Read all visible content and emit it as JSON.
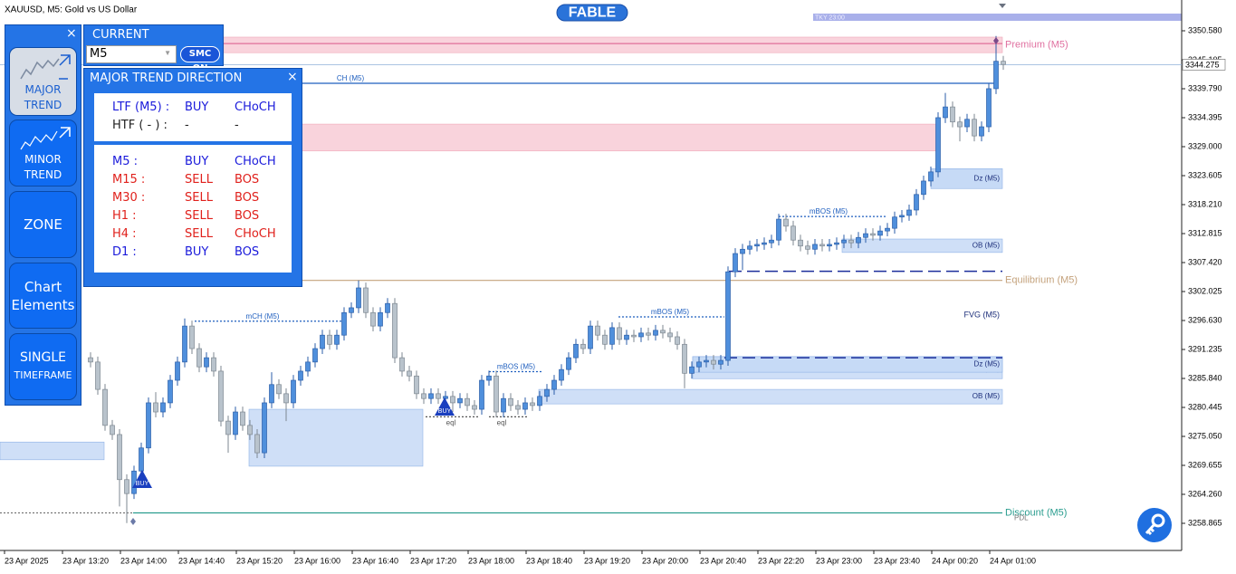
{
  "chart_data": {
    "type": "candlestick",
    "title": "XAUUSD, M5:  Gold vs US Dollar",
    "logo": "FABLE",
    "session": "TKY 23:00",
    "x_tick_labels": [
      "23 Apr 2025",
      "23 Apr 13:20",
      "23 Apr 14:00",
      "23 Apr 14:40",
      "23 Apr 15:20",
      "23 Apr 16:00",
      "23 Apr 16:40",
      "23 Apr 17:20",
      "23 Apr 18:00",
      "23 Apr 18:40",
      "23 Apr 19:20",
      "23 Apr 20:00",
      "23 Apr 20:40",
      "23 Apr 22:20",
      "23 Apr 23:00",
      "23 Apr 23:40",
      "24 Apr 00:20",
      "24 Apr 01:00"
    ],
    "up_color": "#4f8fdc",
    "down_color": "#b9c3cc",
    "open": [
      3289.7,
      3288.9,
      3283.8,
      3277.1,
      3275.4,
      3267.0,
      3264.4,
      3268.6,
      3272.9,
      3281.3,
      3279.6,
      3281.3,
      3285.5,
      3288.9,
      3295.6,
      3291.4,
      3288.0,
      3289.7,
      3287.2,
      3277.9,
      3275.4,
      3279.6,
      3277.1,
      3275.4,
      3272.0,
      3281.3,
      3284.7,
      3283.0,
      3281.3,
      3285.5,
      3287.2,
      3288.9,
      3291.4,
      3293.9,
      3292.2,
      3293.9,
      3298.1,
      3299.0,
      3302.7,
      3298.1,
      3295.6,
      3298.1,
      3299.8,
      3289.7,
      3287.2,
      3286.3,
      3283.0,
      3282.1,
      3283.0,
      3282.1,
      3282.5,
      3281.3,
      3282.1,
      3280.8,
      3280.1,
      3285.5,
      3286.3,
      3279.6,
      3282.1,
      3280.8,
      3280.1,
      3281.3,
      3280.8,
      3282.5,
      3283.8,
      3285.5,
      3287.5,
      3289.7,
      3292.2,
      3291.4,
      3295.6,
      3293.9,
      3292.2,
      3295.3,
      3293.1,
      3293.9,
      3293.6,
      3294.3,
      3293.9,
      3294.8,
      3294.3,
      3293.6,
      3292.2,
      3286.8,
      3288.0,
      3288.9,
      3289.2,
      3288.5,
      3289.2,
      3305.7,
      3309.1,
      3309.9,
      3310.5,
      3310.8,
      3311.1,
      3311.6,
      3315.5,
      3314.2,
      3311.6,
      3310.5,
      3309.9,
      3310.8,
      3310.5,
      3310.8,
      3311.1,
      3311.6,
      3311.1,
      3312.1,
      3312.8,
      3312.5,
      3313.3,
      3313.8,
      3315.9,
      3316.2,
      3317.2,
      3320.1,
      3322.6,
      3324.3,
      3334.4,
      3336.4,
      3333.6,
      3332.7,
      3334.1,
      3331.0,
      3332.7,
      3339.8,
      3344.9
    ],
    "high": [
      3290.7,
      3289.9,
      3284.8,
      3278.1,
      3276.4,
      3268.0,
      3269.6,
      3273.9,
      3282.3,
      3283.3,
      3282.3,
      3286.5,
      3289.9,
      3297.0,
      3296.6,
      3292.4,
      3290.7,
      3290.7,
      3288.2,
      3278.9,
      3280.6,
      3280.6,
      3278.1,
      3276.4,
      3282.3,
      3287.0,
      3285.7,
      3284.0,
      3286.5,
      3288.2,
      3289.9,
      3292.4,
      3294.9,
      3294.9,
      3294.9,
      3299.1,
      3300.0,
      3304.1,
      3303.7,
      3299.1,
      3299.1,
      3300.8,
      3300.8,
      3290.7,
      3288.2,
      3287.3,
      3284.0,
      3284.0,
      3284.0,
      3283.5,
      3283.5,
      3283.1,
      3283.1,
      3281.8,
      3286.5,
      3287.3,
      3287.3,
      3283.1,
      3283.1,
      3281.8,
      3282.3,
      3282.3,
      3283.5,
      3284.8,
      3286.5,
      3288.5,
      3290.7,
      3293.2,
      3293.2,
      3296.6,
      3296.6,
      3294.9,
      3296.3,
      3296.3,
      3294.9,
      3294.9,
      3295.3,
      3295.3,
      3295.8,
      3295.8,
      3295.3,
      3294.6,
      3293.2,
      3289.0,
      3289.9,
      3290.2,
      3290.2,
      3290.2,
      3306.7,
      3310.1,
      3310.9,
      3311.5,
      3311.8,
      3312.1,
      3312.6,
      3316.5,
      3316.5,
      3315.2,
      3312.6,
      3311.5,
      3311.8,
      3311.8,
      3311.8,
      3312.1,
      3312.6,
      3312.6,
      3313.1,
      3313.8,
      3313.8,
      3314.3,
      3314.8,
      3316.9,
      3317.2,
      3318.2,
      3321.1,
      3323.6,
      3325.3,
      3335.4,
      3339.0,
      3337.4,
      3334.6,
      3335.1,
      3335.1,
      3333.7,
      3340.8,
      3349.6,
      3345.9
    ],
    "low": [
      3287.9,
      3282.8,
      3276.1,
      3274.4,
      3262.0,
      3258.9,
      3263.4,
      3267.6,
      3271.9,
      3278.6,
      3278.6,
      3280.3,
      3284.5,
      3287.9,
      3290.4,
      3287.0,
      3287.0,
      3286.2,
      3276.9,
      3272.0,
      3274.4,
      3276.1,
      3274.4,
      3271.0,
      3271.0,
      3280.3,
      3282.0,
      3277.9,
      3280.3,
      3284.5,
      3286.2,
      3287.9,
      3290.4,
      3291.2,
      3291.2,
      3292.9,
      3297.1,
      3298.0,
      3297.1,
      3294.6,
      3294.6,
      3297.1,
      3288.7,
      3286.2,
      3285.3,
      3282.0,
      3281.1,
      3281.1,
      3281.1,
      3280.8,
      3279.6,
      3280.3,
      3279.8,
      3279.1,
      3279.1,
      3284.5,
      3278.6,
      3278.6,
      3279.8,
      3279.1,
      3279.1,
      3279.8,
      3279.8,
      3281.5,
      3282.8,
      3284.5,
      3286.5,
      3288.7,
      3290.4,
      3290.4,
      3292.9,
      3291.2,
      3291.2,
      3292.1,
      3292.1,
      3292.6,
      3292.6,
      3292.9,
      3292.9,
      3293.3,
      3292.6,
      3291.2,
      3284.0,
      3285.8,
      3287.0,
      3287.9,
      3287.5,
      3287.5,
      3288.2,
      3304.7,
      3306.0,
      3308.9,
      3309.5,
      3309.8,
      3310.1,
      3310.6,
      3313.2,
      3310.6,
      3309.5,
      3308.9,
      3308.9,
      3309.5,
      3309.5,
      3309.8,
      3310.1,
      3310.1,
      3310.1,
      3311.1,
      3311.5,
      3311.5,
      3312.3,
      3312.8,
      3314.9,
      3315.2,
      3316.2,
      3319.1,
      3321.6,
      3323.3,
      3333.4,
      3332.6,
      3330.0,
      3331.7,
      3330.0,
      3330.0,
      3331.7,
      3338.8,
      3343.3
    ],
    "close": [
      3288.9,
      3283.8,
      3277.1,
      3275.4,
      3267.0,
      3264.4,
      3268.6,
      3272.9,
      3281.3,
      3279.6,
      3281.3,
      3285.5,
      3288.9,
      3295.6,
      3291.4,
      3288.0,
      3289.7,
      3287.2,
      3277.9,
      3275.4,
      3279.6,
      3277.1,
      3275.4,
      3272.0,
      3281.3,
      3284.7,
      3283.0,
      3281.3,
      3285.5,
      3287.2,
      3288.9,
      3291.4,
      3293.9,
      3292.2,
      3293.9,
      3298.1,
      3299.0,
      3302.7,
      3298.1,
      3295.6,
      3298.1,
      3299.8,
      3289.7,
      3287.2,
      3286.3,
      3283.0,
      3282.1,
      3283.0,
      3282.1,
      3282.5,
      3281.3,
      3282.1,
      3280.8,
      3280.1,
      3285.5,
      3286.3,
      3279.6,
      3282.1,
      3280.8,
      3280.1,
      3281.3,
      3280.8,
      3282.5,
      3283.8,
      3285.5,
      3287.5,
      3289.7,
      3292.2,
      3291.4,
      3295.6,
      3293.9,
      3292.2,
      3295.3,
      3293.1,
      3293.9,
      3293.6,
      3294.3,
      3293.9,
      3294.8,
      3294.3,
      3293.6,
      3292.2,
      3286.8,
      3288.0,
      3288.9,
      3289.2,
      3288.5,
      3289.2,
      3305.7,
      3309.1,
      3309.9,
      3310.5,
      3310.8,
      3311.1,
      3311.6,
      3315.5,
      3314.2,
      3311.6,
      3310.5,
      3309.9,
      3310.8,
      3310.5,
      3310.8,
      3311.1,
      3311.6,
      3311.1,
      3312.1,
      3312.8,
      3312.5,
      3313.3,
      3313.8,
      3315.9,
      3316.2,
      3317.2,
      3320.1,
      3322.6,
      3324.3,
      3334.4,
      3336.4,
      3333.6,
      3332.7,
      3334.1,
      3331.0,
      3332.7,
      3339.8,
      3344.9,
      3344.3
    ],
    "last_price": 3344.275,
    "ylim": [
      3253.81,
      3356.31
    ],
    "yticks": [
      {
        "value": 3350.58,
        "label": "3350.580"
      },
      3345.105,
      {
        "value": 3339.79,
        "label": "3339.790"
      },
      3334.395,
      {
        "value": 3329,
        "label": "3329.000"
      },
      3323.605,
      {
        "value": 3318.21,
        "label": "3318.210"
      },
      3312.815,
      {
        "value": 3307.42,
        "label": "3307.420"
      },
      3302.025,
      {
        "value": 3296.63,
        "label": "3296.630"
      },
      3291.235,
      {
        "value": 3285.84,
        "label": "3285.840"
      },
      3280.445,
      {
        "value": 3275.05,
        "label": "3275.050"
      },
      3269.655,
      {
        "value": 3264.26,
        "label": "3264.260"
      },
      3258.865
    ],
    "grid": false,
    "zones": [
      {
        "label": "Premium (M5)",
        "low": 3346.5,
        "high": 3349.4,
        "color": "#f9d3dc"
      },
      {
        "low": 3328.2,
        "high": 3333.2,
        "color": "#f9d3dc"
      },
      {
        "label": "Dz (M5)",
        "low": 3321.2,
        "high": 3324.9,
        "color": "#c6daf6"
      },
      {
        "label": "OB (M5)",
        "low": 3309.3,
        "high": 3311.8,
        "color": "#cfdff7"
      },
      {
        "label": "OB (M5)",
        "low": 3285.8,
        "high": 3289.9,
        "color": "#cfdff7"
      },
      {
        "label": "Dz (M5)",
        "low": 3287.0,
        "high": 3289.9,
        "color": "#c6daf6"
      },
      {
        "label": "OB (M5)",
        "low": 3281.1,
        "high": 3283.8,
        "color": "#cfdff7"
      },
      {
        "low": 3269.5,
        "high": 3280.1,
        "color": "#cfdff7"
      },
      {
        "low": 3270.7,
        "high": 3274.0,
        "color": "#cfdff7"
      }
    ],
    "lines": [
      {
        "label": "CH (M5)",
        "value": 3340.8,
        "color": "#1f5fbf",
        "style": "solid"
      },
      {
        "label": "Equilibrium (M5)",
        "value": 3304.1,
        "color": "#c4a27c",
        "style": "solid"
      },
      {
        "label": "Discount (M5)",
        "value": 3260.8,
        "color": "#2a9d8f",
        "style": "solid"
      },
      {
        "value": 3305.8,
        "color": "#1c2e9a",
        "style": "dashed"
      },
      {
        "value": 3289.7,
        "color": "#1c2e9a",
        "style": "dashed"
      },
      {
        "value": 3348.2,
        "color": "#e0709a",
        "style": "solid"
      },
      {
        "label": "mCH (M5)",
        "value": 3296.5,
        "color": "#1f5fbf",
        "style": "dotted"
      },
      {
        "label": "mBOS (M5)",
        "value": 3287.1,
        "color": "#1f5fbf",
        "style": "dotted"
      },
      {
        "label": "mBOS (M5)",
        "value": 3297.3,
        "color": "#1f5fbf",
        "style": "dotted"
      },
      {
        "label": "mBOS (M5)",
        "value": 3316.0,
        "color": "#1f5fbf",
        "style": "dotted"
      },
      {
        "label": "eql",
        "value": 3278.7,
        "color": "#555555",
        "style": "dotted"
      },
      {
        "label": "eql",
        "value": 3278.7,
        "color": "#555555",
        "style": "dotted"
      },
      {
        "label": "PDL",
        "value": 3260.8,
        "color": "#777777",
        "style": "dotted"
      }
    ],
    "annotations": [
      "FVG (M5)"
    ],
    "signals": [
      {
        "label": "BUY",
        "color": "#1a3fbf"
      },
      {
        "label": "BUY",
        "color": "#1a3fbf"
      }
    ]
  },
  "panel": {
    "close_icon": "×",
    "buttons": [
      [
        "MAJOR",
        "TREND"
      ],
      [
        "MINOR",
        "TREND"
      ],
      [
        "ZONE"
      ],
      [
        "Chart",
        "Elements"
      ],
      [
        "SINGLE",
        "TIMEFRAME"
      ]
    ],
    "timeframe_header": "CURRENT",
    "timeframe": "M5",
    "smc_button": "SMC ON",
    "trend_title": "MAJOR TREND DIRECTION",
    "trend_close_icon": "×",
    "trend_rows_top": [
      {
        "tf": "LTF (M5) :",
        "signal": "BUY",
        "structure": "CHoCH",
        "color": "#1a1adb"
      },
      {
        "tf": "HTF ( - ) :",
        "signal": "-",
        "structure": "-",
        "color": "#222222"
      }
    ],
    "trend_rows": [
      {
        "tf": "M5 :",
        "signal": "BUY",
        "structure": "CHoCH",
        "color": "#1a1adb"
      },
      {
        "tf": "M15 :",
        "signal": "SELL",
        "structure": "BOS",
        "color": "#e0201b"
      },
      {
        "tf": "M30 :",
        "signal": "SELL",
        "structure": "BOS",
        "color": "#e0201b"
      },
      {
        "tf": "H1 :",
        "signal": "SELL",
        "structure": "BOS",
        "color": "#e0201b"
      },
      {
        "tf": "H4 :",
        "signal": "SELL",
        "structure": "CHoCH",
        "color": "#e0201b"
      },
      {
        "tf": "D1 :",
        "signal": "BUY",
        "structure": "BOS",
        "color": "#1a1adb"
      }
    ]
  }
}
